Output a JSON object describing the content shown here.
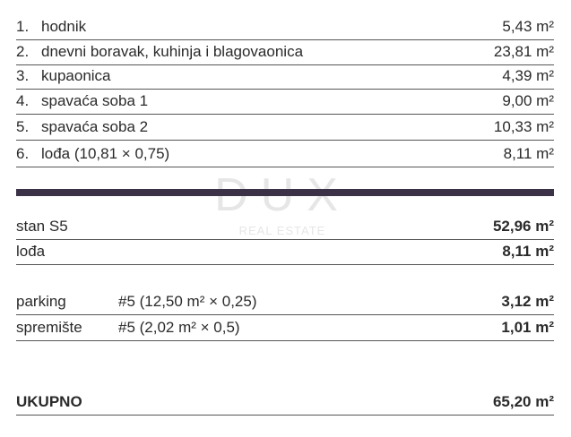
{
  "rooms": [
    {
      "num": "1.",
      "name": "hodnik",
      "area": "5,43 m²"
    },
    {
      "num": "2.",
      "name": "dnevni boravak, kuhinja i blagovaonica",
      "area": "23,81 m²"
    },
    {
      "num": "3.",
      "name": "kupaonica",
      "area": "4,39 m²"
    },
    {
      "num": "4.",
      "name": "spavaća soba 1",
      "area": "9,00 m²"
    },
    {
      "num": "5.",
      "name": "spavaća soba 2",
      "area": "10,33 m²"
    },
    {
      "num": "6.",
      "name": "lođa (10,81 × 0,75)",
      "area": "8,11 m²"
    }
  ],
  "watermark": {
    "logo": "DUX",
    "subtitle": "REAL ESTATE"
  },
  "summary": [
    {
      "label": "stan S5",
      "area": "52,96 m²"
    },
    {
      "label": "lođa",
      "area": "8,11 m²"
    }
  ],
  "extras": [
    {
      "label": "parking",
      "detail": "#5 (12,50 m² × 0,25)",
      "area": "3,12 m²"
    },
    {
      "label": "spremište",
      "detail": "#5 (2,02 m² × 0,5)",
      "area": "1,01 m²"
    }
  ],
  "total": {
    "label": "UKUPNO",
    "area": "65,20 m²"
  }
}
